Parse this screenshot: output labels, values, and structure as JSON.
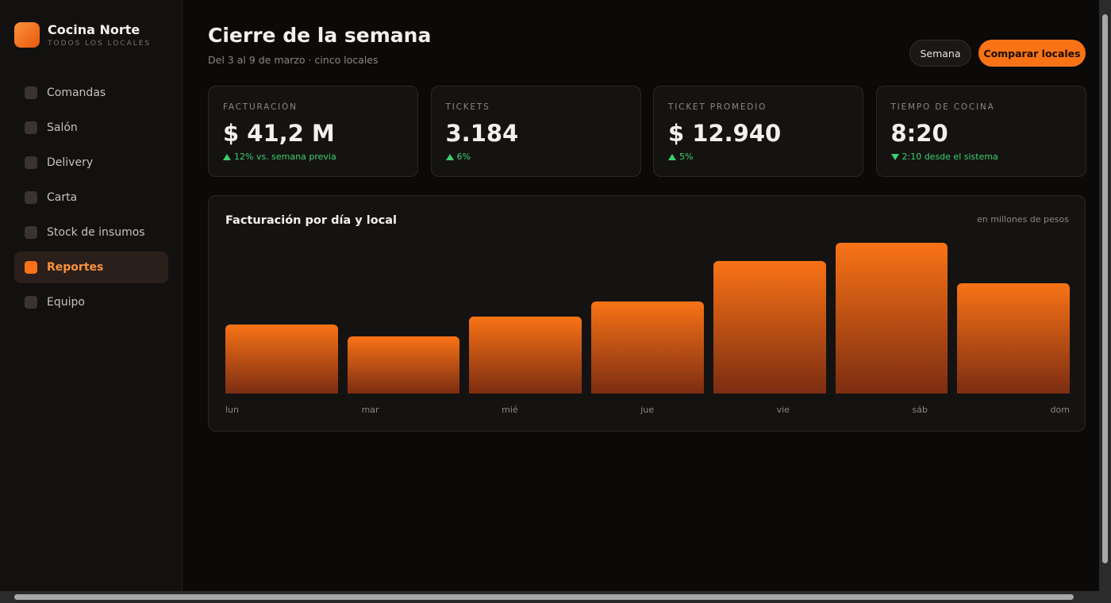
{
  "brand": {
    "name": "Cocina Norte",
    "tagline": "TODOS LOS LOCALES"
  },
  "nav": [
    {
      "label": "Comandas",
      "active": false
    },
    {
      "label": "Salón",
      "active": false
    },
    {
      "label": "Delivery",
      "active": false
    },
    {
      "label": "Carta",
      "active": false
    },
    {
      "label": "Stock de insumos",
      "active": false
    },
    {
      "label": "Reportes",
      "active": true
    },
    {
      "label": "Equipo",
      "active": false
    }
  ],
  "header": {
    "title": "Cierre de la semana",
    "subtitle": "Del 3 al 9 de marzo · cinco locales",
    "buttons": [
      "Semana",
      "Comparar locales"
    ]
  },
  "kpis": [
    {
      "label": "FACTURACIÓN",
      "value": "$ 41,2 M",
      "delta": "12% vs. semana previa",
      "direction": "up"
    },
    {
      "label": "TICKETS",
      "value": "3.184",
      "delta": "6%",
      "direction": "up"
    },
    {
      "label": "TICKET PROMEDIO",
      "value": "$ 12.940",
      "delta": "5%",
      "direction": "up"
    },
    {
      "label": "TIEMPO DE COCINA",
      "value": "8:20",
      "delta": "2:10 desde el sistema",
      "direction": "down"
    }
  ],
  "chart_data": {
    "type": "bar",
    "title": "Facturación por día y local",
    "subtitle": "en millones de pesos",
    "categories": [
      "lun",
      "mar",
      "mié",
      "jue",
      "vie",
      "sáb",
      "dom"
    ],
    "values": [
      4.1,
      3.4,
      4.6,
      5.5,
      7.9,
      9.0,
      6.6
    ],
    "color": "#f97316"
  }
}
